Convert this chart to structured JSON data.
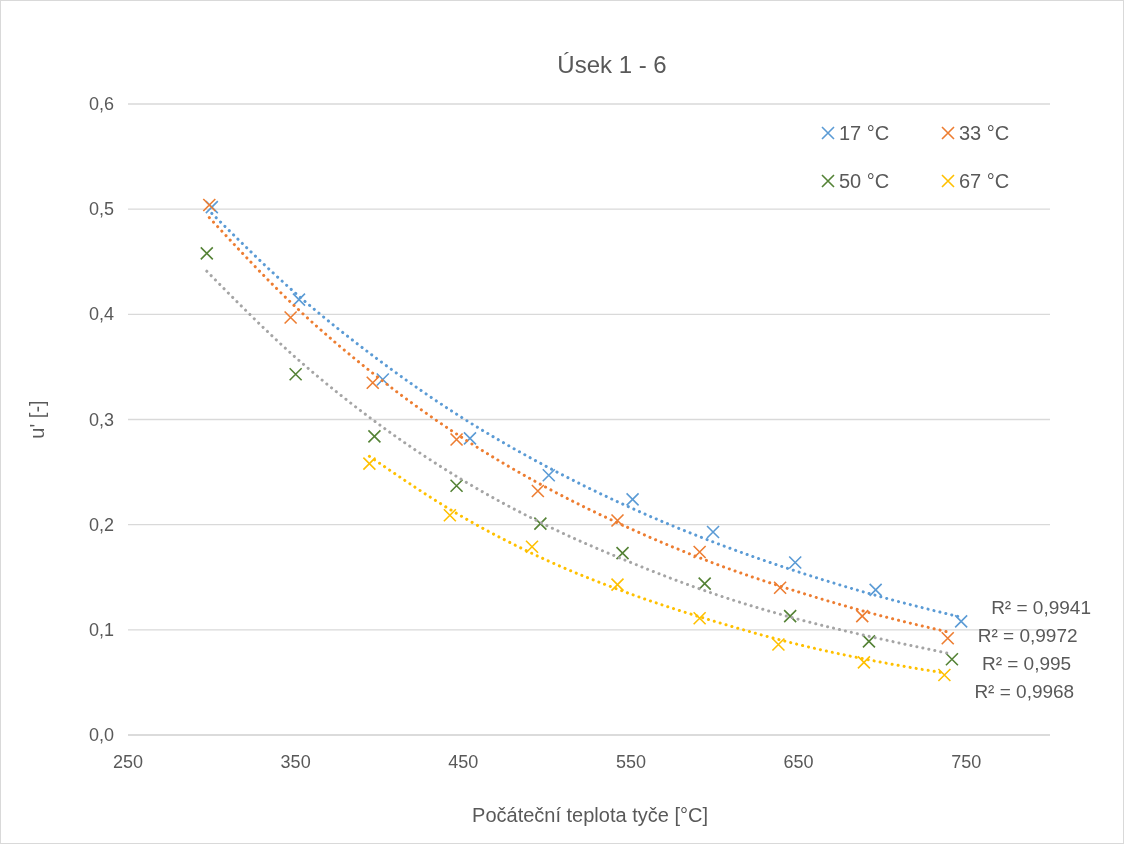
{
  "chart_data": {
    "type": "scatter",
    "title": "Úsek 1 - 6",
    "xlabel": "Počáteční teplota tyče [°C]",
    "ylabel": "u' [-]",
    "xlim": [
      250,
      800
    ],
    "xticks": [
      250,
      350,
      450,
      550,
      650,
      750
    ],
    "ylim": [
      0,
      0.6
    ],
    "yticks": [
      {
        "value": 0,
        "label": "0,0"
      },
      {
        "value": 0.1,
        "label": "0,1"
      },
      {
        "value": 0.2,
        "label": "0,2"
      },
      {
        "value": 0.3,
        "label": "0,3"
      },
      {
        "value": 0.4,
        "label": "0,4"
      },
      {
        "value": 0.5,
        "label": "0,5"
      },
      {
        "value": 0.6,
        "label": "0,6"
      }
    ],
    "grid": "y",
    "legend": "top right",
    "marker": "cross",
    "series": [
      {
        "name": "17 °C",
        "color": "#5b9bd5",
        "x": [
          300,
          352,
          402,
          454,
          501,
          551,
          599,
          648,
          696,
          747
        ],
        "values": [
          0.502,
          0.414,
          0.338,
          0.282,
          0.247,
          0.224,
          0.193,
          0.164,
          0.138,
          0.108
        ]
      },
      {
        "name": "33 °C",
        "color": "#ed7d31",
        "x": [
          298.5,
          347,
          396,
          446,
          494.5,
          542,
          591,
          639,
          688,
          739
        ],
        "values": [
          0.504,
          0.397,
          0.335,
          0.281,
          0.232,
          0.204,
          0.174,
          0.14,
          0.113,
          0.092
        ]
      },
      {
        "name": "50 °C",
        "color": "#548235",
        "x": [
          297,
          350,
          397,
          446,
          496,
          545,
          594,
          645,
          692,
          741.5
        ],
        "values": [
          0.458,
          0.343,
          0.284,
          0.237,
          0.201,
          0.173,
          0.144,
          0.113,
          0.089,
          0.072
        ]
      },
      {
        "name": "67 °C",
        "color": "#ffc000",
        "x": [
          394,
          442,
          491,
          542,
          591,
          638,
          689,
          737
        ],
        "values": [
          0.258,
          0.209,
          0.179,
          0.143,
          0.111,
          0.086,
          0.069,
          0.057
        ]
      },
      {
        "type": "line",
        "color": "#5b9bd5",
        "line_style": "dotted",
        "marker": "none",
        "x": [
          300,
          350,
          400,
          450,
          500,
          550,
          600,
          650,
          700,
          747
        ],
        "values": [
          0.496,
          0.42,
          0.356,
          0.301,
          0.255,
          0.216,
          0.183,
          0.155,
          0.131,
          0.112
        ]
      },
      {
        "type": "line",
        "color": "#ed7d31",
        "line_style": "dotted",
        "marker": "none",
        "x": [
          298.5,
          350,
          400,
          450,
          500,
          550,
          600,
          650,
          700,
          739
        ],
        "values": [
          0.492,
          0.407,
          0.339,
          0.282,
          0.235,
          0.196,
          0.163,
          0.136,
          0.113,
          0.098
        ]
      },
      {
        "type": "line",
        "color": "#a5a5a5",
        "line_style": "dotted",
        "marker": "none",
        "x": [
          297,
          350,
          400,
          450,
          500,
          550,
          600,
          650,
          700,
          741.5
        ],
        "values": [
          0.441,
          0.359,
          0.295,
          0.242,
          0.199,
          0.164,
          0.134,
          0.11,
          0.091,
          0.077
        ]
      },
      {
        "type": "line",
        "color": "#ffc000",
        "line_style": "dotted",
        "marker": "none",
        "x": [
          394,
          450,
          500,
          550,
          600,
          650,
          700,
          737
        ],
        "values": [
          0.265,
          0.207,
          0.166,
          0.134,
          0.108,
          0.086,
          0.069,
          0.059
        ]
      }
    ],
    "annotations": [
      "R² = 0,9941",
      "R² = 0,9972",
      "R² = 0,995",
      "R² = 0,9968"
    ]
  }
}
